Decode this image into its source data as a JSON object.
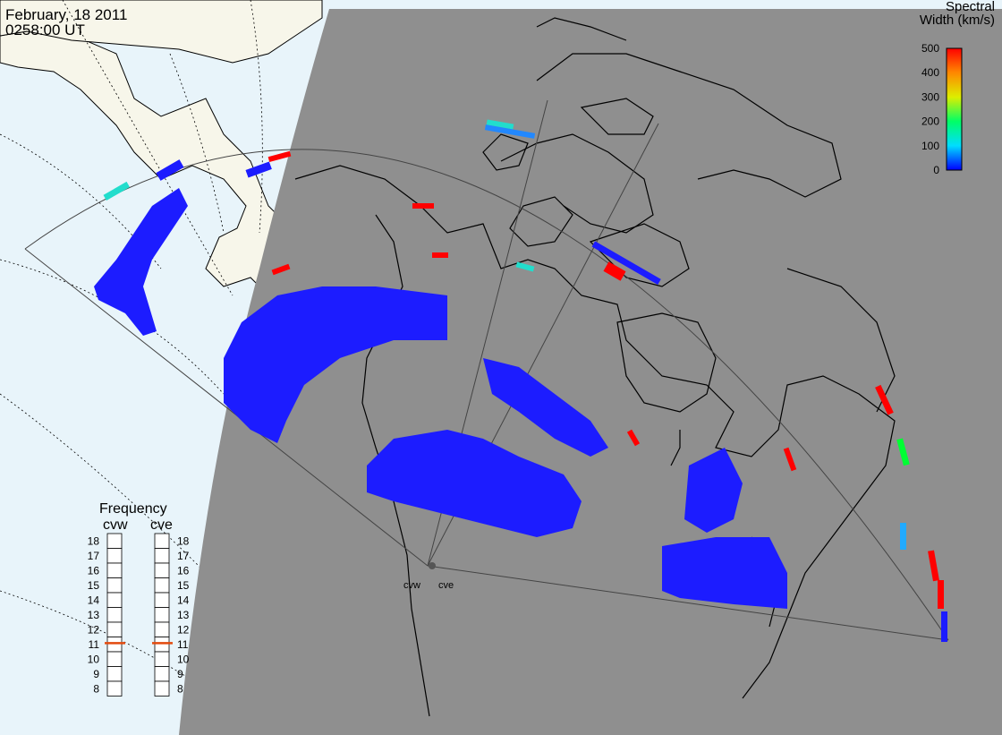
{
  "header": {
    "date": "February, 18 2011",
    "time": "0258:00 UT"
  },
  "legend": {
    "title_line1": "Spectral",
    "title_line2": "Width (km/s)",
    "ticks": [
      "0",
      "100",
      "200",
      "300",
      "400",
      "500"
    ],
    "range": [
      0,
      500
    ],
    "colors": [
      "#0000ff",
      "#00ddff",
      "#00ff66",
      "#ddee00",
      "#ff8800",
      "#ff0000"
    ]
  },
  "frequency": {
    "title": "Frequency",
    "unit_range": [
      8,
      18
    ],
    "radars": [
      {
        "name": "cvw",
        "value": 10.8
      },
      {
        "name": "cve",
        "value": 10.8
      }
    ],
    "tick_labels": [
      "18",
      "17",
      "16",
      "15",
      "14",
      "13",
      "12",
      "11",
      "10",
      "9",
      "8"
    ],
    "indicator_color": "#e34a0e"
  },
  "map": {
    "background_colors": {
      "ocean": "#e8f4fa",
      "land": "#f7f6ea",
      "night": "#8f8f8f",
      "coastline": "#000000"
    },
    "radar_labels": [
      "cvw",
      "cve"
    ]
  }
}
